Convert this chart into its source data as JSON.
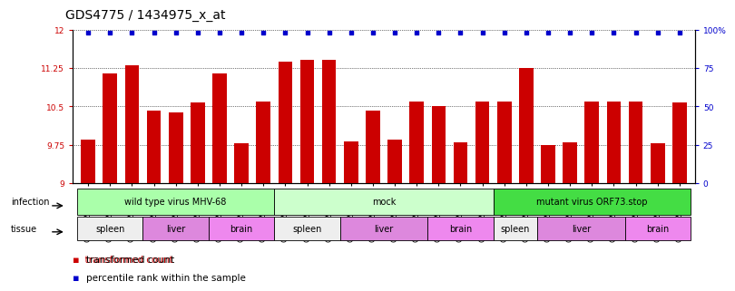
{
  "title": "GDS4775 / 1434975_x_at",
  "samples": [
    "GSM1243471",
    "GSM1243472",
    "GSM1243473",
    "GSM1243462",
    "GSM1243463",
    "GSM1243464",
    "GSM1243480",
    "GSM1243481",
    "GSM1243482",
    "GSM1243468",
    "GSM1243469",
    "GSM1243470",
    "GSM1243458",
    "GSM1243459",
    "GSM1243460",
    "GSM1243461",
    "GSM1243477",
    "GSM1243478",
    "GSM1243479",
    "GSM1243474",
    "GSM1243475",
    "GSM1243476",
    "GSM1243465",
    "GSM1243466",
    "GSM1243467",
    "GSM1243483",
    "GSM1243484",
    "GSM1243485"
  ],
  "bar_values": [
    9.85,
    11.15,
    11.3,
    10.42,
    10.38,
    10.57,
    11.15,
    9.78,
    10.6,
    11.37,
    11.42,
    11.42,
    9.82,
    10.42,
    9.85,
    10.6,
    10.5,
    9.8,
    10.6,
    10.6,
    11.25,
    9.75,
    9.8,
    10.6,
    10.6,
    10.6,
    9.78,
    10.57
  ],
  "percentile_values": [
    98,
    98,
    98,
    98,
    98,
    98,
    98,
    98,
    98,
    98,
    98,
    98,
    98,
    98,
    98,
    98,
    98,
    98,
    98,
    98,
    98,
    98,
    98,
    98,
    98,
    98,
    98,
    98
  ],
  "bar_color": "#cc0000",
  "percentile_color": "#0000cc",
  "ylim_left": [
    9.0,
    12.0
  ],
  "ylim_right": [
    0,
    100
  ],
  "yticks_left": [
    9.0,
    9.75,
    10.5,
    11.25,
    12.0
  ],
  "yticks_right": [
    0,
    25,
    50,
    75,
    100
  ],
  "ytick_labels_left": [
    "9",
    "9.75",
    "10.5",
    "11.25",
    "12"
  ],
  "ytick_labels_right": [
    "0",
    "25",
    "50",
    "75",
    "100%"
  ],
  "infection_groups": [
    {
      "label": "wild type virus MHV-68",
      "start": 0,
      "end": 9,
      "color": "#aaffaa"
    },
    {
      "label": "mock",
      "start": 9,
      "end": 19,
      "color": "#ccffcc"
    },
    {
      "label": "mutant virus ORF73.stop",
      "start": 19,
      "end": 28,
      "color": "#44dd44"
    }
  ],
  "tissue_groups": [
    {
      "label": "spleen",
      "start": 0,
      "end": 3,
      "color": "#eeeeee"
    },
    {
      "label": "liver",
      "start": 3,
      "end": 6,
      "color": "#dd88dd"
    },
    {
      "label": "brain",
      "start": 6,
      "end": 9,
      "color": "#ee88ee"
    },
    {
      "label": "spleen",
      "start": 9,
      "end": 12,
      "color": "#eeeeee"
    },
    {
      "label": "liver",
      "start": 12,
      "end": 16,
      "color": "#dd88dd"
    },
    {
      "label": "brain",
      "start": 16,
      "end": 19,
      "color": "#ee88ee"
    },
    {
      "label": "spleen",
      "start": 19,
      "end": 21,
      "color": "#eeeeee"
    },
    {
      "label": "liver",
      "start": 21,
      "end": 25,
      "color": "#dd88dd"
    },
    {
      "label": "brain",
      "start": 25,
      "end": 28,
      "color": "#ee88ee"
    }
  ],
  "legend_items": [
    {
      "label": "transformed count",
      "color": "#cc0000"
    },
    {
      "label": "percentile rank within the sample",
      "color": "#0000cc"
    }
  ],
  "background_color": "#ffffff",
  "title_fontsize": 10,
  "tick_fontsize": 6.5,
  "label_fontsize": 7.5
}
